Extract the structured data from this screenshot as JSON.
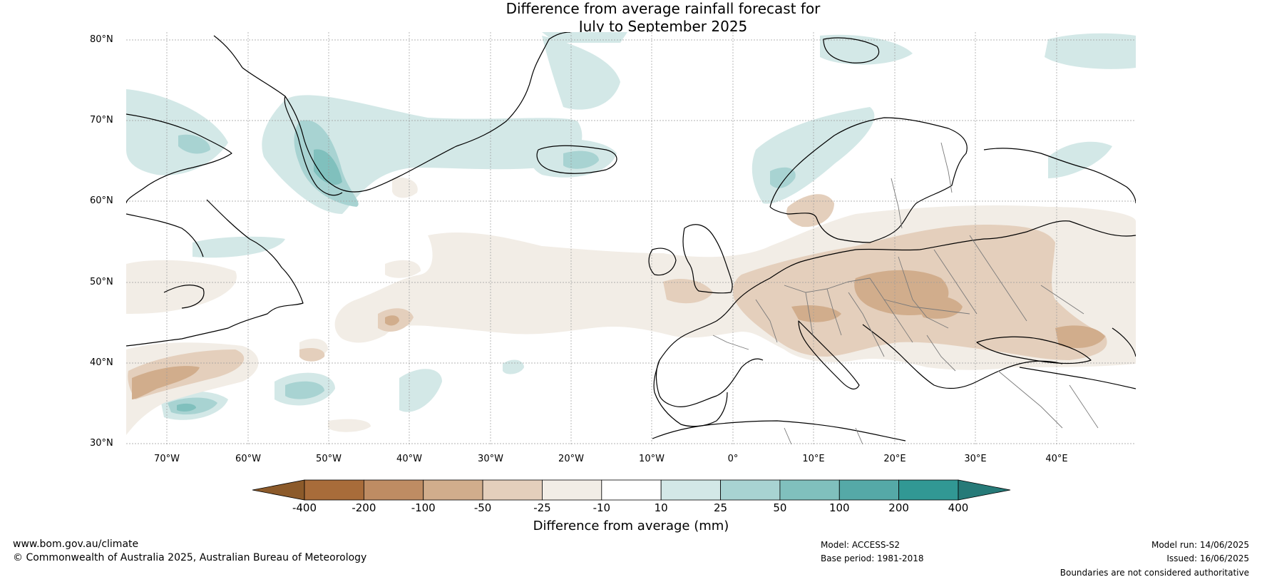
{
  "title_line1": "Difference from average rainfall forecast for",
  "title_line2": "July to September 2025",
  "lat_labels": [
    "80°N",
    "70°N",
    "60°N",
    "50°N",
    "40°N",
    "30°N"
  ],
  "lon_labels": [
    "70°W",
    "60°W",
    "50°W",
    "40°W",
    "30°W",
    "20°W",
    "10°W",
    "0°",
    "10°E",
    "20°E",
    "30°E",
    "40°E"
  ],
  "colorbar": {
    "title": "Difference from average (mm)",
    "ticks": [
      "-400",
      "-200",
      "-100",
      "-50",
      "-25",
      "-10",
      "10",
      "25",
      "50",
      "100",
      "200",
      "400"
    ],
    "colors": [
      "#8c5a2a",
      "#a86c3a",
      "#be8c63",
      "#d1ad8c",
      "#e4cfbc",
      "#f2ede6",
      "#ffffff",
      "#d3e8e7",
      "#a8d3d2",
      "#80c0bd",
      "#55a9a7",
      "#319894",
      "#267a78"
    ]
  },
  "footer": {
    "website": "www.bom.gov.au/climate",
    "copyright": "© Commonwealth of Australia 2025, Australian Bureau of Meteorology",
    "model": "Model: ACCESS-S2",
    "base_period": "Base period: 1981-2018",
    "model_run": "Model run: 14/06/2025",
    "issued": "Issued: 16/06/2025",
    "boundaries": "Boundaries are not considered authoritative"
  },
  "colors": {
    "land_line": "#000000",
    "border_line": "#7a7a7a",
    "grid_line": "#9a9a9a"
  }
}
